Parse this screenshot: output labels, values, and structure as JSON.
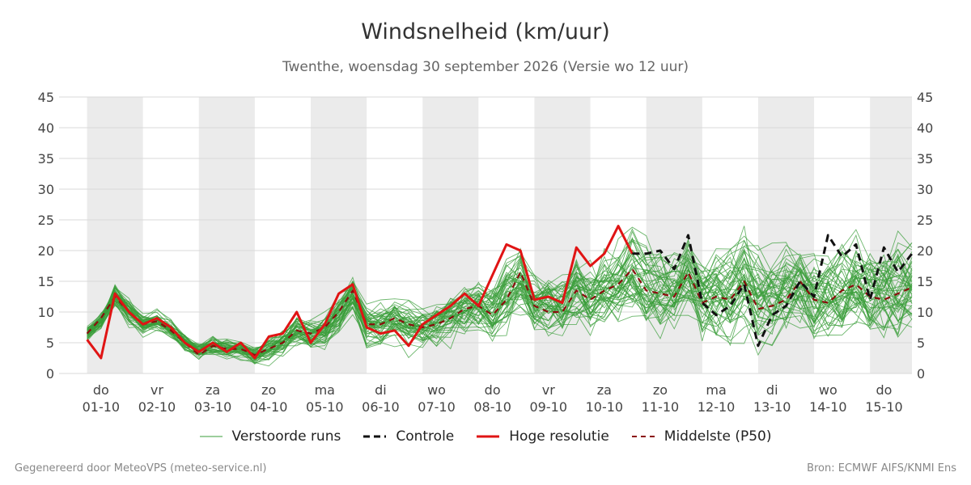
{
  "title": "Windsnelheid (km/uur)",
  "subtitle": "Twenthe, woensdag 30 september 2026 (Versie wo 12 uur)",
  "legend": {
    "ensemble": "Verstoorde runs",
    "control": "Controle",
    "hires": "Hoge resolutie",
    "median": "Middelste (P50)"
  },
  "footer": {
    "left": "Gegenereerd door MeteoVPS (meteo-service.nl)",
    "right": "Bron: ECMWF AIFS/KNMI Ens"
  },
  "colors": {
    "ensemble": "#3a9e3a",
    "control": "#111111",
    "hires": "#e01414",
    "median": "#8b0d0d",
    "night_band": "#ebebeb",
    "grid": "#d9d9d9"
  },
  "chart_data": {
    "type": "line",
    "title": "Windsnelheid (km/uur)",
    "ylim": [
      0,
      45
    ],
    "yticks": [
      0,
      5,
      10,
      15,
      20,
      25,
      30,
      35,
      40,
      45
    ],
    "xlim": [
      -0.75,
      14.5
    ],
    "x_unit": "days from 01-10-2026",
    "xticks": [
      {
        "day": "do",
        "date": "01-10"
      },
      {
        "day": "vr",
        "date": "02-10"
      },
      {
        "day": "za",
        "date": "03-10"
      },
      {
        "day": "zo",
        "date": "04-10"
      },
      {
        "day": "ma",
        "date": "05-10"
      },
      {
        "day": "di",
        "date": "06-10"
      },
      {
        "day": "wo",
        "date": "07-10"
      },
      {
        "day": "do",
        "date": "08-10"
      },
      {
        "day": "vr",
        "date": "09-10"
      },
      {
        "day": "za",
        "date": "10-10"
      },
      {
        "day": "zo",
        "date": "11-10"
      },
      {
        "day": "ma",
        "date": "12-10"
      },
      {
        "day": "di",
        "date": "13-10"
      },
      {
        "day": "wo",
        "date": "14-10"
      },
      {
        "day": "do",
        "date": "15-10"
      }
    ],
    "grid": true,
    "legend_position": "bottom",
    "series": [
      {
        "name": "Hoge resolutie",
        "x": [
          -0.25,
          0,
          0.25,
          0.5,
          0.75,
          1,
          1.25,
          1.5,
          1.75,
          2,
          2.25,
          2.5,
          2.75,
          3,
          3.25,
          3.5,
          3.75,
          4,
          4.25,
          4.5,
          4.75,
          5,
          5.25,
          5.5,
          5.75,
          6,
          6.25,
          6.5,
          6.75,
          7,
          7.25,
          7.5,
          7.75,
          8,
          8.25,
          8.5,
          8.75,
          9,
          9.25,
          9.5
        ],
        "values": [
          5.5,
          2.5,
          13,
          10,
          8,
          9,
          7.5,
          5,
          3.5,
          5,
          3.5,
          5,
          2.5,
          6,
          6.5,
          10,
          5,
          8,
          13,
          14.5,
          7.5,
          6.5,
          7,
          4.5,
          8,
          9.5,
          11,
          13,
          11,
          16,
          21,
          20,
          12,
          12.5,
          11.5,
          20.5,
          17.5,
          19.5,
          24,
          19.5
        ]
      },
      {
        "name": "Controle",
        "x": [
          9.5,
          9.75,
          10,
          10.25,
          10.5,
          10.75,
          11,
          11.25,
          11.5,
          11.75,
          12,
          12.25,
          12.5,
          12.75,
          13,
          13.25,
          13.5,
          13.75,
          14,
          14.25,
          14.5
        ],
        "values": [
          19.5,
          19.5,
          20,
          17,
          22.5,
          11.5,
          9.5,
          11,
          14.5,
          4.5,
          9.5,
          11,
          15,
          12.5,
          22.5,
          19,
          21,
          12,
          20.5,
          16.5,
          19.5
        ]
      },
      {
        "name": "Middelste (P50)",
        "x": [
          -0.25,
          0,
          0.25,
          0.5,
          0.75,
          1,
          1.25,
          1.5,
          1.75,
          2,
          2.25,
          2.5,
          2.75,
          3,
          3.25,
          3.5,
          3.75,
          4,
          4.25,
          4.5,
          4.75,
          5,
          5.25,
          5.5,
          5.75,
          6,
          6.25,
          6.5,
          6.75,
          7,
          7.25,
          7.5,
          7.75,
          8,
          8.25,
          8.5,
          8.75,
          9,
          9.25,
          9.5,
          9.75,
          10,
          10.25,
          10.5,
          10.75,
          11,
          11.25,
          11.5,
          11.75,
          12,
          12.25,
          12.5,
          12.75,
          13,
          13.25,
          13.5,
          13.75,
          14,
          14.25,
          14.5
        ],
        "values": [
          6.5,
          9,
          12.5,
          10,
          8,
          8.5,
          7,
          5,
          3,
          4.5,
          4,
          4,
          3,
          4,
          5,
          7,
          6.5,
          7.5,
          10,
          13.5,
          8,
          8,
          9,
          8,
          7.5,
          8,
          9,
          10.5,
          11,
          9.5,
          12,
          16.5,
          11,
          10,
          10,
          13.5,
          12,
          13.5,
          14.5,
          17,
          13.5,
          13,
          12.5,
          16.5,
          11.5,
          12.5,
          12,
          15,
          10.5,
          11,
          12,
          15,
          12,
          11.5,
          13.5,
          14.5,
          12.5,
          12,
          13,
          14
        ]
      }
    ],
    "ensemble": {
      "name": "Verstoorde runs",
      "x_start": -0.25,
      "x_step": 0.25,
      "mean": [
        6.5,
        8.5,
        12.5,
        10,
        8,
        8.5,
        7,
        5,
        3.5,
        4.5,
        4,
        4,
        3,
        4,
        5,
        7,
        6.5,
        7.5,
        10,
        13,
        8,
        8,
        9,
        8,
        7.5,
        8,
        9,
        10.5,
        11,
        10,
        12.5,
        15,
        11.5,
        11,
        11,
        14,
        12.5,
        14,
        15,
        16.5,
        14,
        13.5,
        13,
        15.5,
        12,
        12.5,
        12.5,
        15,
        12,
        12,
        13,
        15,
        13,
        13,
        14,
        15,
        13.5,
        13,
        13.5,
        14
      ],
      "spread": [
        1.5,
        1.5,
        2,
        2,
        1.5,
        1.5,
        1.5,
        1.5,
        1.5,
        1.5,
        1.5,
        1.5,
        1.5,
        2,
        2,
        2.5,
        2.5,
        3,
        3,
        3,
        3,
        3,
        3,
        3.5,
        3.5,
        3.5,
        3.5,
        4,
        4,
        4.5,
        5,
        5,
        5,
        5,
        5.5,
        5.5,
        6,
        6,
        6,
        6,
        6,
        6,
        6,
        6,
        6.5,
        6.5,
        6.5,
        7,
        7,
        7,
        7,
        7,
        7,
        7,
        7,
        7,
        7,
        7,
        7,
        7
      ],
      "members": 50
    }
  }
}
